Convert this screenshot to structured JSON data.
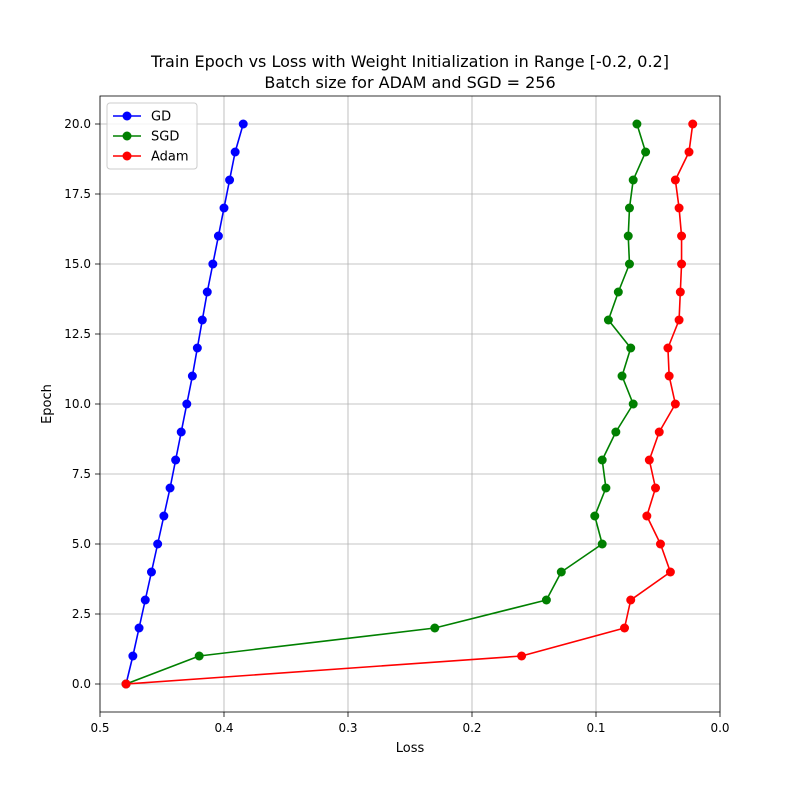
{
  "chart_data": {
    "type": "line",
    "title": "Train Epoch vs Loss with Weight Initialization in Range [-0.2, 0.2]",
    "subtitle": "Batch size for ADAM and SGD = 256",
    "xlabel": "Loss",
    "ylabel": "Epoch",
    "xlim": [
      0.5,
      0.0
    ],
    "ylim": [
      -1.0,
      21.0
    ],
    "x_inverted": true,
    "grid": true,
    "legend_position": "upper-left",
    "x_ticks": [
      0.5,
      0.4,
      0.3,
      0.2,
      0.1,
      0.0
    ],
    "x_tick_labels": [
      "0.5",
      "0.4",
      "0.3",
      "0.2",
      "0.1",
      "0.0"
    ],
    "y_ticks": [
      0.0,
      2.5,
      5.0,
      7.5,
      10.0,
      12.5,
      15.0,
      17.5,
      20.0
    ],
    "y_tick_labels": [
      "0.0",
      "2.5",
      "5.0",
      "7.5",
      "10.0",
      "12.5",
      "15.0",
      "17.5",
      "20.0"
    ],
    "series": [
      {
        "name": "GD",
        "color": "#0000ff",
        "marker": "circle",
        "epochs": [
          0,
          1,
          2,
          3,
          4,
          5,
          6,
          7,
          8,
          9,
          10,
          11,
          12,
          13,
          14,
          15,
          16,
          17,
          18,
          19,
          20
        ],
        "loss": [
          0.479,
          0.4735,
          0.4685,
          0.4635,
          0.4585,
          0.4535,
          0.4485,
          0.4435,
          0.439,
          0.4345,
          0.43,
          0.4255,
          0.4215,
          0.4175,
          0.4135,
          0.409,
          0.4045,
          0.4,
          0.3955,
          0.391,
          0.3845
        ]
      },
      {
        "name": "SGD",
        "color": "#008000",
        "marker": "circle",
        "epochs": [
          0,
          1,
          2,
          3,
          4,
          5,
          6,
          7,
          8,
          9,
          10,
          11,
          12,
          13,
          14,
          15,
          16,
          17,
          18,
          19,
          20
        ],
        "loss": [
          0.479,
          0.42,
          0.23,
          0.14,
          0.128,
          0.095,
          0.101,
          0.092,
          0.095,
          0.084,
          0.07,
          0.079,
          0.072,
          0.09,
          0.082,
          0.073,
          0.074,
          0.073,
          0.07,
          0.06,
          0.067
        ]
      },
      {
        "name": "Adam",
        "color": "#ff0000",
        "marker": "circle",
        "epochs": [
          0,
          1,
          2,
          3,
          4,
          5,
          6,
          7,
          8,
          9,
          10,
          11,
          12,
          13,
          14,
          15,
          16,
          17,
          18,
          19,
          20
        ],
        "loss": [
          0.479,
          0.16,
          0.077,
          0.072,
          0.04,
          0.048,
          0.059,
          0.052,
          0.057,
          0.049,
          0.036,
          0.041,
          0.042,
          0.033,
          0.032,
          0.031,
          0.031,
          0.033,
          0.036,
          0.025,
          0.022
        ]
      }
    ]
  }
}
